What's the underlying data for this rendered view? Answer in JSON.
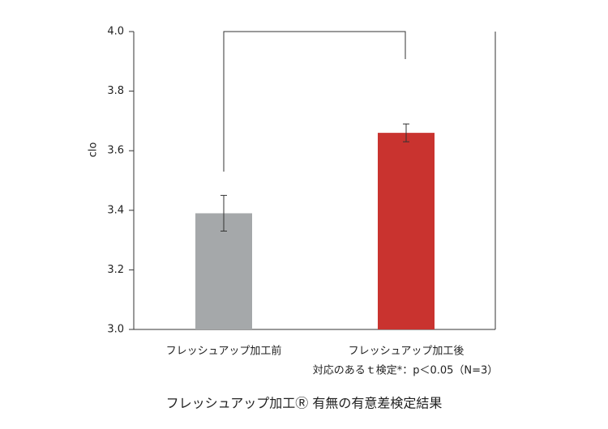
{
  "chart_data": {
    "type": "bar",
    "y_label": "clo",
    "categories": [
      "フレッシュアップ加工前",
      "フレッシュアップ加工後"
    ],
    "values": [
      3.39,
      3.66
    ],
    "errors": [
      0.06,
      0.03
    ],
    "colors": [
      "#a5a8aa",
      "#c9332f"
    ],
    "ylim": [
      3.0,
      4.0
    ],
    "yticks": [
      {
        "value": 3.0,
        "label": "3.0"
      },
      3.2,
      3.4,
      3.6,
      3.8,
      {
        "value": 4.0,
        "label": "4.0"
      }
    ],
    "annotation": "対応のあるｔ検定*：p＜0.05（N=3）",
    "caption": "フレッシュアップ加工Ⓡ 有無の有意差検定結果"
  }
}
